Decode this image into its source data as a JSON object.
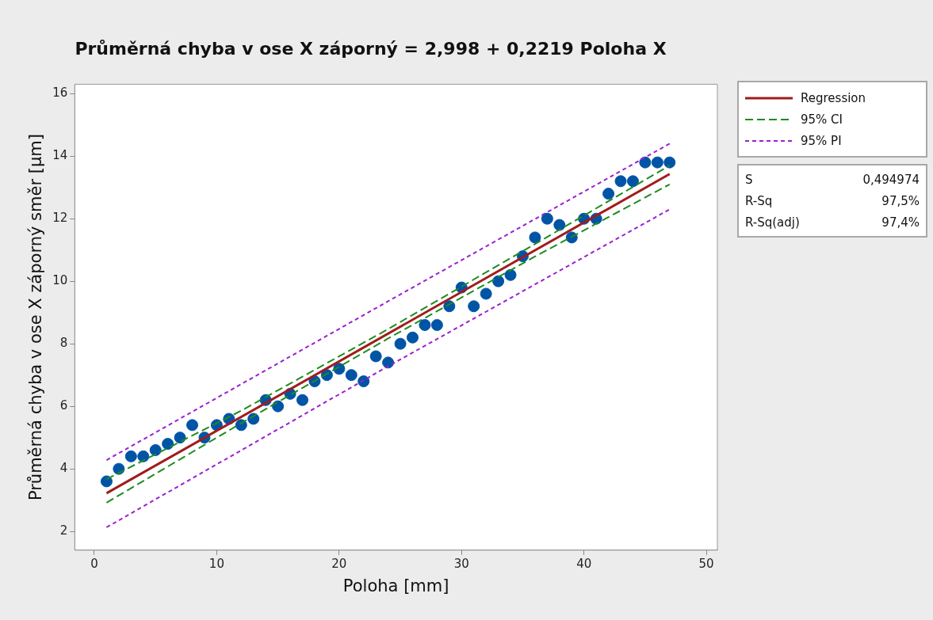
{
  "chart_data": {
    "type": "scatter",
    "title": "Průměrná chyba v ose X záporný = 2,998 + 0,2219 Poloha X",
    "xlabel": "Poloha [mm]",
    "ylabel": "Průměrná chyba v ose X záporný směr [µm]",
    "x": [
      1,
      2,
      3,
      4,
      5,
      6,
      7,
      8,
      9,
      10,
      11,
      12,
      13,
      14,
      15,
      16,
      17,
      18,
      19,
      20,
      21,
      22,
      23,
      24,
      25,
      26,
      27,
      28,
      29,
      30,
      31,
      32,
      33,
      34,
      35,
      36,
      37,
      38,
      39,
      40,
      41,
      42,
      43,
      44,
      45,
      46,
      47
    ],
    "series": [
      {
        "type": "scatter",
        "color": "#0054a6",
        "marker": "circle",
        "values": [
          3.6,
          4.0,
          4.4,
          4.4,
          4.6,
          4.8,
          5.0,
          5.4,
          5.0,
          5.4,
          5.6,
          5.4,
          5.6,
          6.2,
          6.0,
          6.4,
          6.2,
          6.8,
          7.0,
          7.2,
          7.0,
          6.8,
          7.6,
          7.4,
          8.0,
          8.2,
          8.6,
          8.6,
          9.2,
          9.8,
          9.2,
          9.6,
          10.0,
          10.2,
          10.8,
          11.4,
          12.0,
          11.8,
          11.4,
          12.0,
          12.0,
          12.8,
          13.2,
          13.2,
          13.8,
          13.8,
          13.8
        ]
      },
      {
        "type": "line",
        "name": "Regression",
        "color": "#a01c1c",
        "line_style": "solid",
        "marker": "none",
        "x": [
          1,
          47
        ],
        "values": [
          3.22,
          13.43
        ]
      },
      {
        "type": "line",
        "name": "95% CI",
        "color": "#1e8c1e",
        "line_style": "dashed",
        "marker": "none",
        "x": [
          1,
          12,
          24,
          36,
          47
        ],
        "values": [
          3.67,
          5.86,
          8.47,
          11.19,
          13.7
        ]
      },
      {
        "type": "line",
        "color": "#1e8c1e",
        "line_style": "dashed",
        "marker": "none",
        "x": [
          1,
          12,
          24,
          36,
          47
        ],
        "values": [
          2.92,
          5.46,
          8.17,
          10.79,
          13.1
        ]
      },
      {
        "type": "line",
        "name": "95% PI",
        "color": "#9b1fd1",
        "line_style": "dotted",
        "marker": "none",
        "x": [
          1,
          24,
          47
        ],
        "values": [
          4.28,
          9.36,
          14.4
        ]
      },
      {
        "type": "line",
        "color": "#9b1fd1",
        "line_style": "dotted",
        "marker": "none",
        "x": [
          1,
          24,
          47
        ],
        "values": [
          2.13,
          7.28,
          12.3
        ]
      }
    ],
    "xlim": [
      -1.6,
      50.9
    ],
    "ylim": [
      1.4,
      16.3
    ],
    "xticks": [
      0,
      10,
      20,
      30,
      40,
      50
    ],
    "yticks": [
      2,
      4,
      6,
      8,
      10,
      12,
      14,
      16
    ],
    "grid": false,
    "legend": "top right",
    "annotations": [
      "S 0,494974",
      "R-Sq 97,5%",
      "R-Sq(adj) 97,4%"
    ]
  }
}
